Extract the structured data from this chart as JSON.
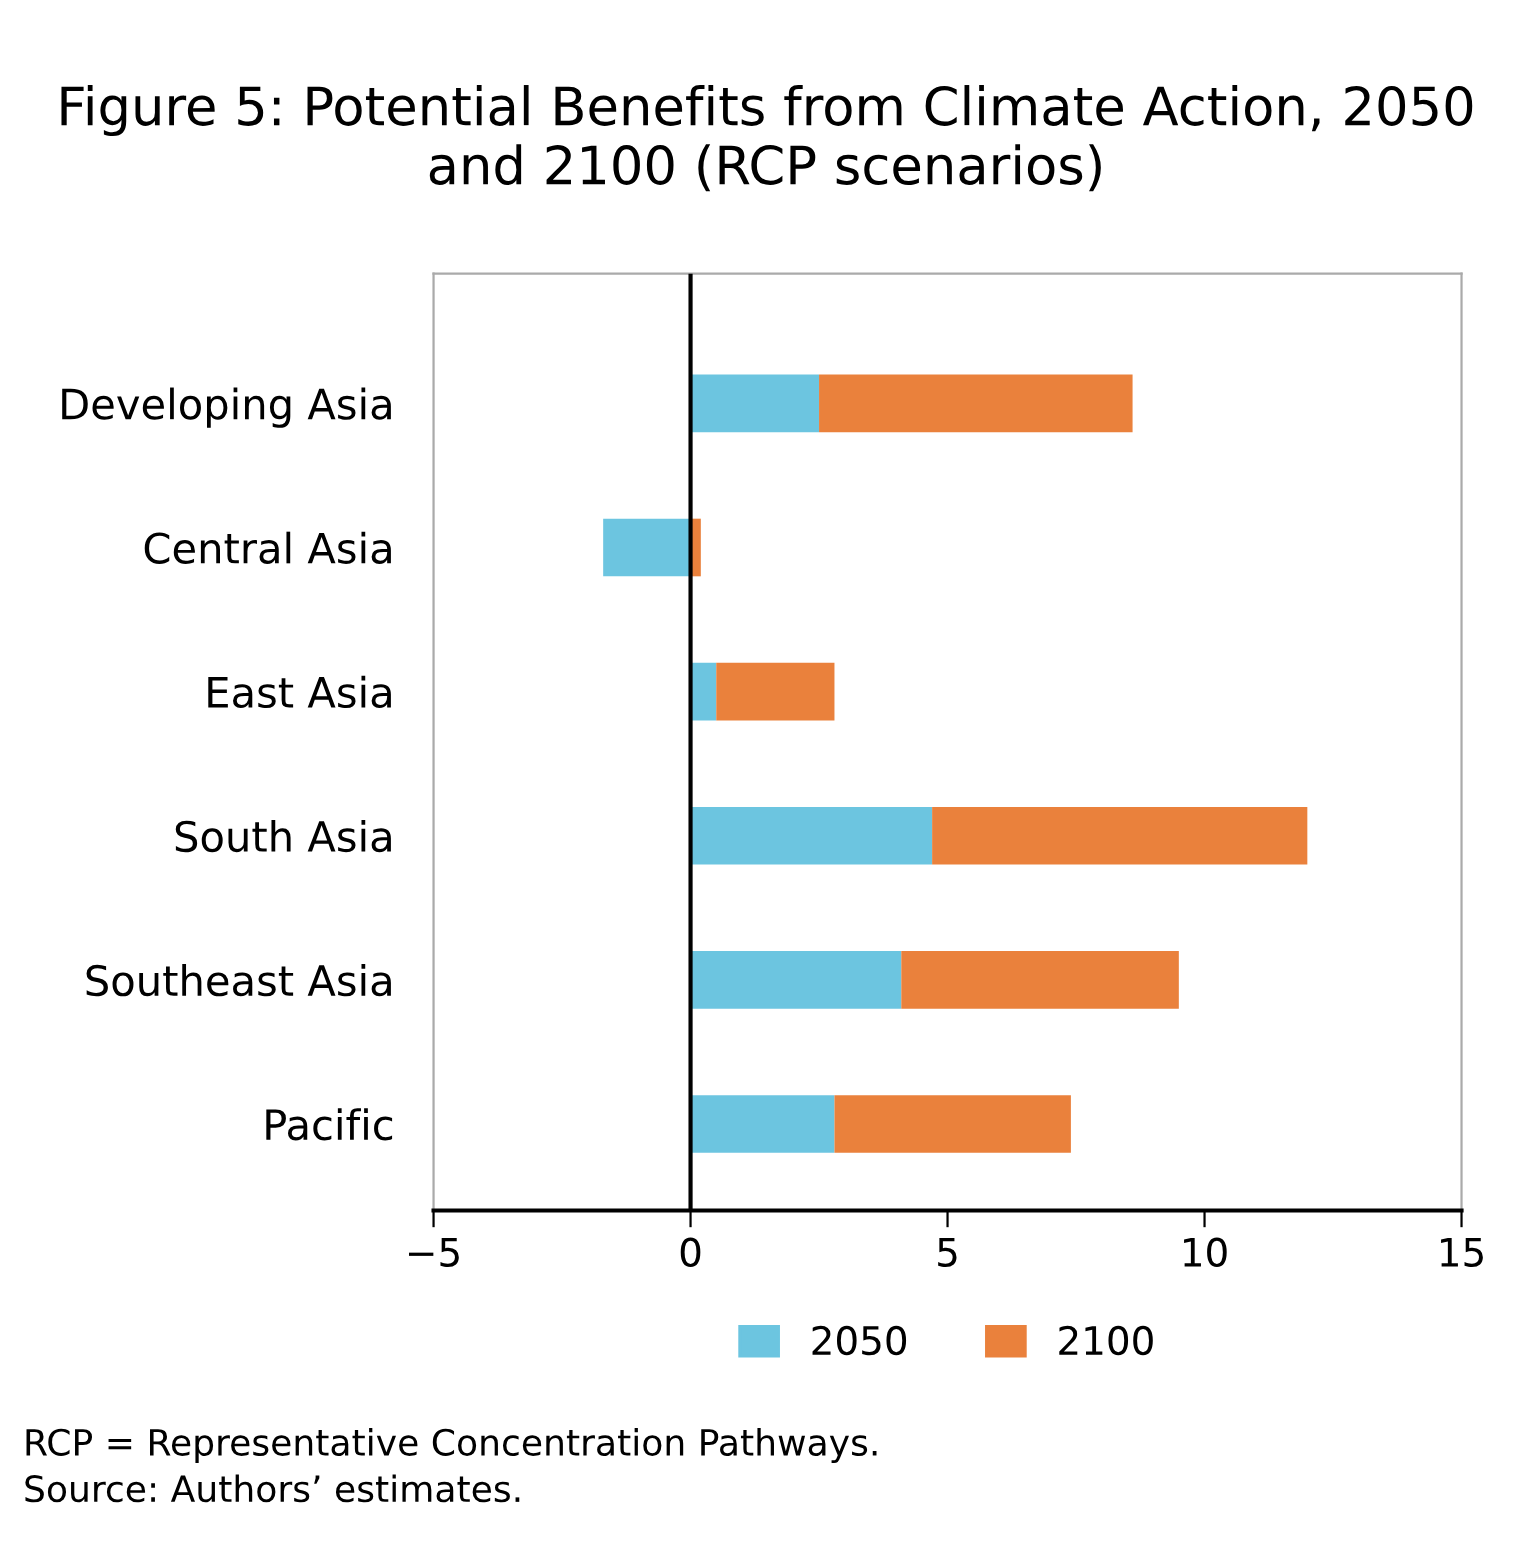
{
  "chart_data": {
    "type": "bar",
    "orientation": "horizontal",
    "stacked": true,
    "title": "Figure 5: Potential Benefits from Climate Action, 2050 and 2100 (RCP scenarios)",
    "categories": [
      "Developing Asia",
      "Central Asia",
      "East Asia",
      "South Asia",
      "Southeast Asia",
      "Pacific"
    ],
    "series": [
      {
        "name": "2050",
        "color": "#6cc5e0",
        "values": [
          2.5,
          -1.7,
          0.5,
          4.7,
          4.1,
          2.8
        ]
      },
      {
        "name": "2100",
        "color": "#ea813c",
        "values": [
          6.1,
          0.2,
          2.3,
          7.3,
          5.4,
          4.6
        ]
      }
    ],
    "xlim": [
      -5,
      15
    ],
    "xticks": [
      {
        "value": -5,
        "label": "−5"
      },
      0,
      5,
      10,
      15
    ],
    "ref_lines": [
      {
        "axis": "x",
        "value": 0,
        "color": "#000000"
      }
    ],
    "grid": false,
    "legend": "bottom",
    "annotations": [
      "RCP = Representative Concentration Pathways.",
      "Source: Authors’ estimates."
    ]
  }
}
